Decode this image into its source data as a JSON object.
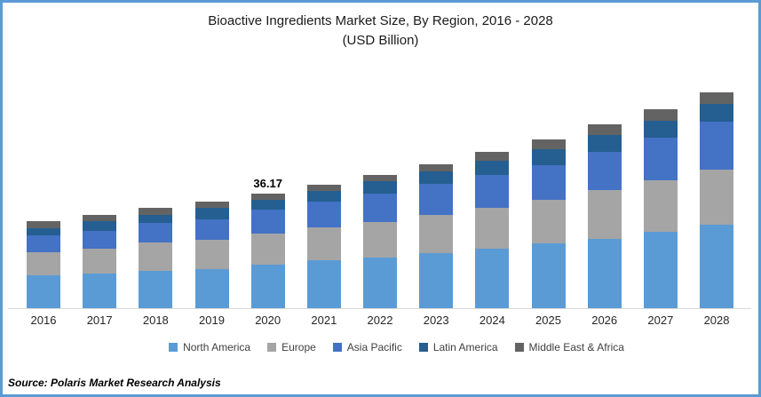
{
  "frame": {
    "border_color": "#5B9BD5",
    "background": "#FFFFFF"
  },
  "title": {
    "line1": "Bioactive Ingredients Market Size, By Region, 2016 - 2028",
    "line2": "(USD Billion)"
  },
  "chart_data": {
    "type": "bar",
    "stacked": true,
    "title": "Bioactive Ingredients Market Size, By Region, 2016 - 2028",
    "subtitle": "(USD Billion)",
    "xlabel": "",
    "ylabel": "USD Billion",
    "grid": false,
    "legend_position": "bottom",
    "axis_line_color": "#D9D9D9",
    "categories": [
      "2016",
      "2017",
      "2018",
      "2019",
      "2020",
      "2021",
      "2022",
      "2023",
      "2024",
      "2025",
      "2026",
      "2027",
      "2028"
    ],
    "series": [
      {
        "name": "North America",
        "color": "#5B9BD5",
        "values": [
          10.5,
          10.9,
          11.7,
          12.3,
          13.7,
          15.1,
          15.9,
          17.4,
          18.8,
          20.6,
          22.0,
          24.0,
          26.4
        ]
      },
      {
        "name": "Europe",
        "color": "#A5A5A5",
        "values": [
          7.3,
          8.0,
          9.2,
          9.4,
          9.8,
          10.4,
          11.3,
          12.1,
          12.9,
          13.5,
          15.4,
          16.3,
          17.3
        ]
      },
      {
        "name": "Asia Pacific",
        "color": "#4472C4",
        "values": [
          5.1,
          5.6,
          6.0,
          6.3,
          7.6,
          8.3,
          9.0,
          9.7,
          10.3,
          11.2,
          12.1,
          13.6,
          15.2
        ]
      },
      {
        "name": "Latin America",
        "color": "#255E91",
        "values": [
          2.3,
          2.9,
          2.7,
          3.6,
          3.0,
          3.1,
          3.8,
          3.9,
          4.7,
          4.9,
          5.2,
          5.4,
          5.7
        ]
      },
      {
        "name": "Middle East & Africa",
        "color": "#636363",
        "values": [
          2.3,
          2.2,
          2.0,
          2.2,
          2.07,
          2.2,
          2.1,
          2.4,
          2.7,
          3.0,
          3.3,
          3.4,
          3.5
        ]
      }
    ],
    "totals_shown": [
      {
        "category": "2020",
        "label": "36.17"
      }
    ]
  },
  "source": {
    "text": "Source: Polaris Market Research Analysis"
  }
}
